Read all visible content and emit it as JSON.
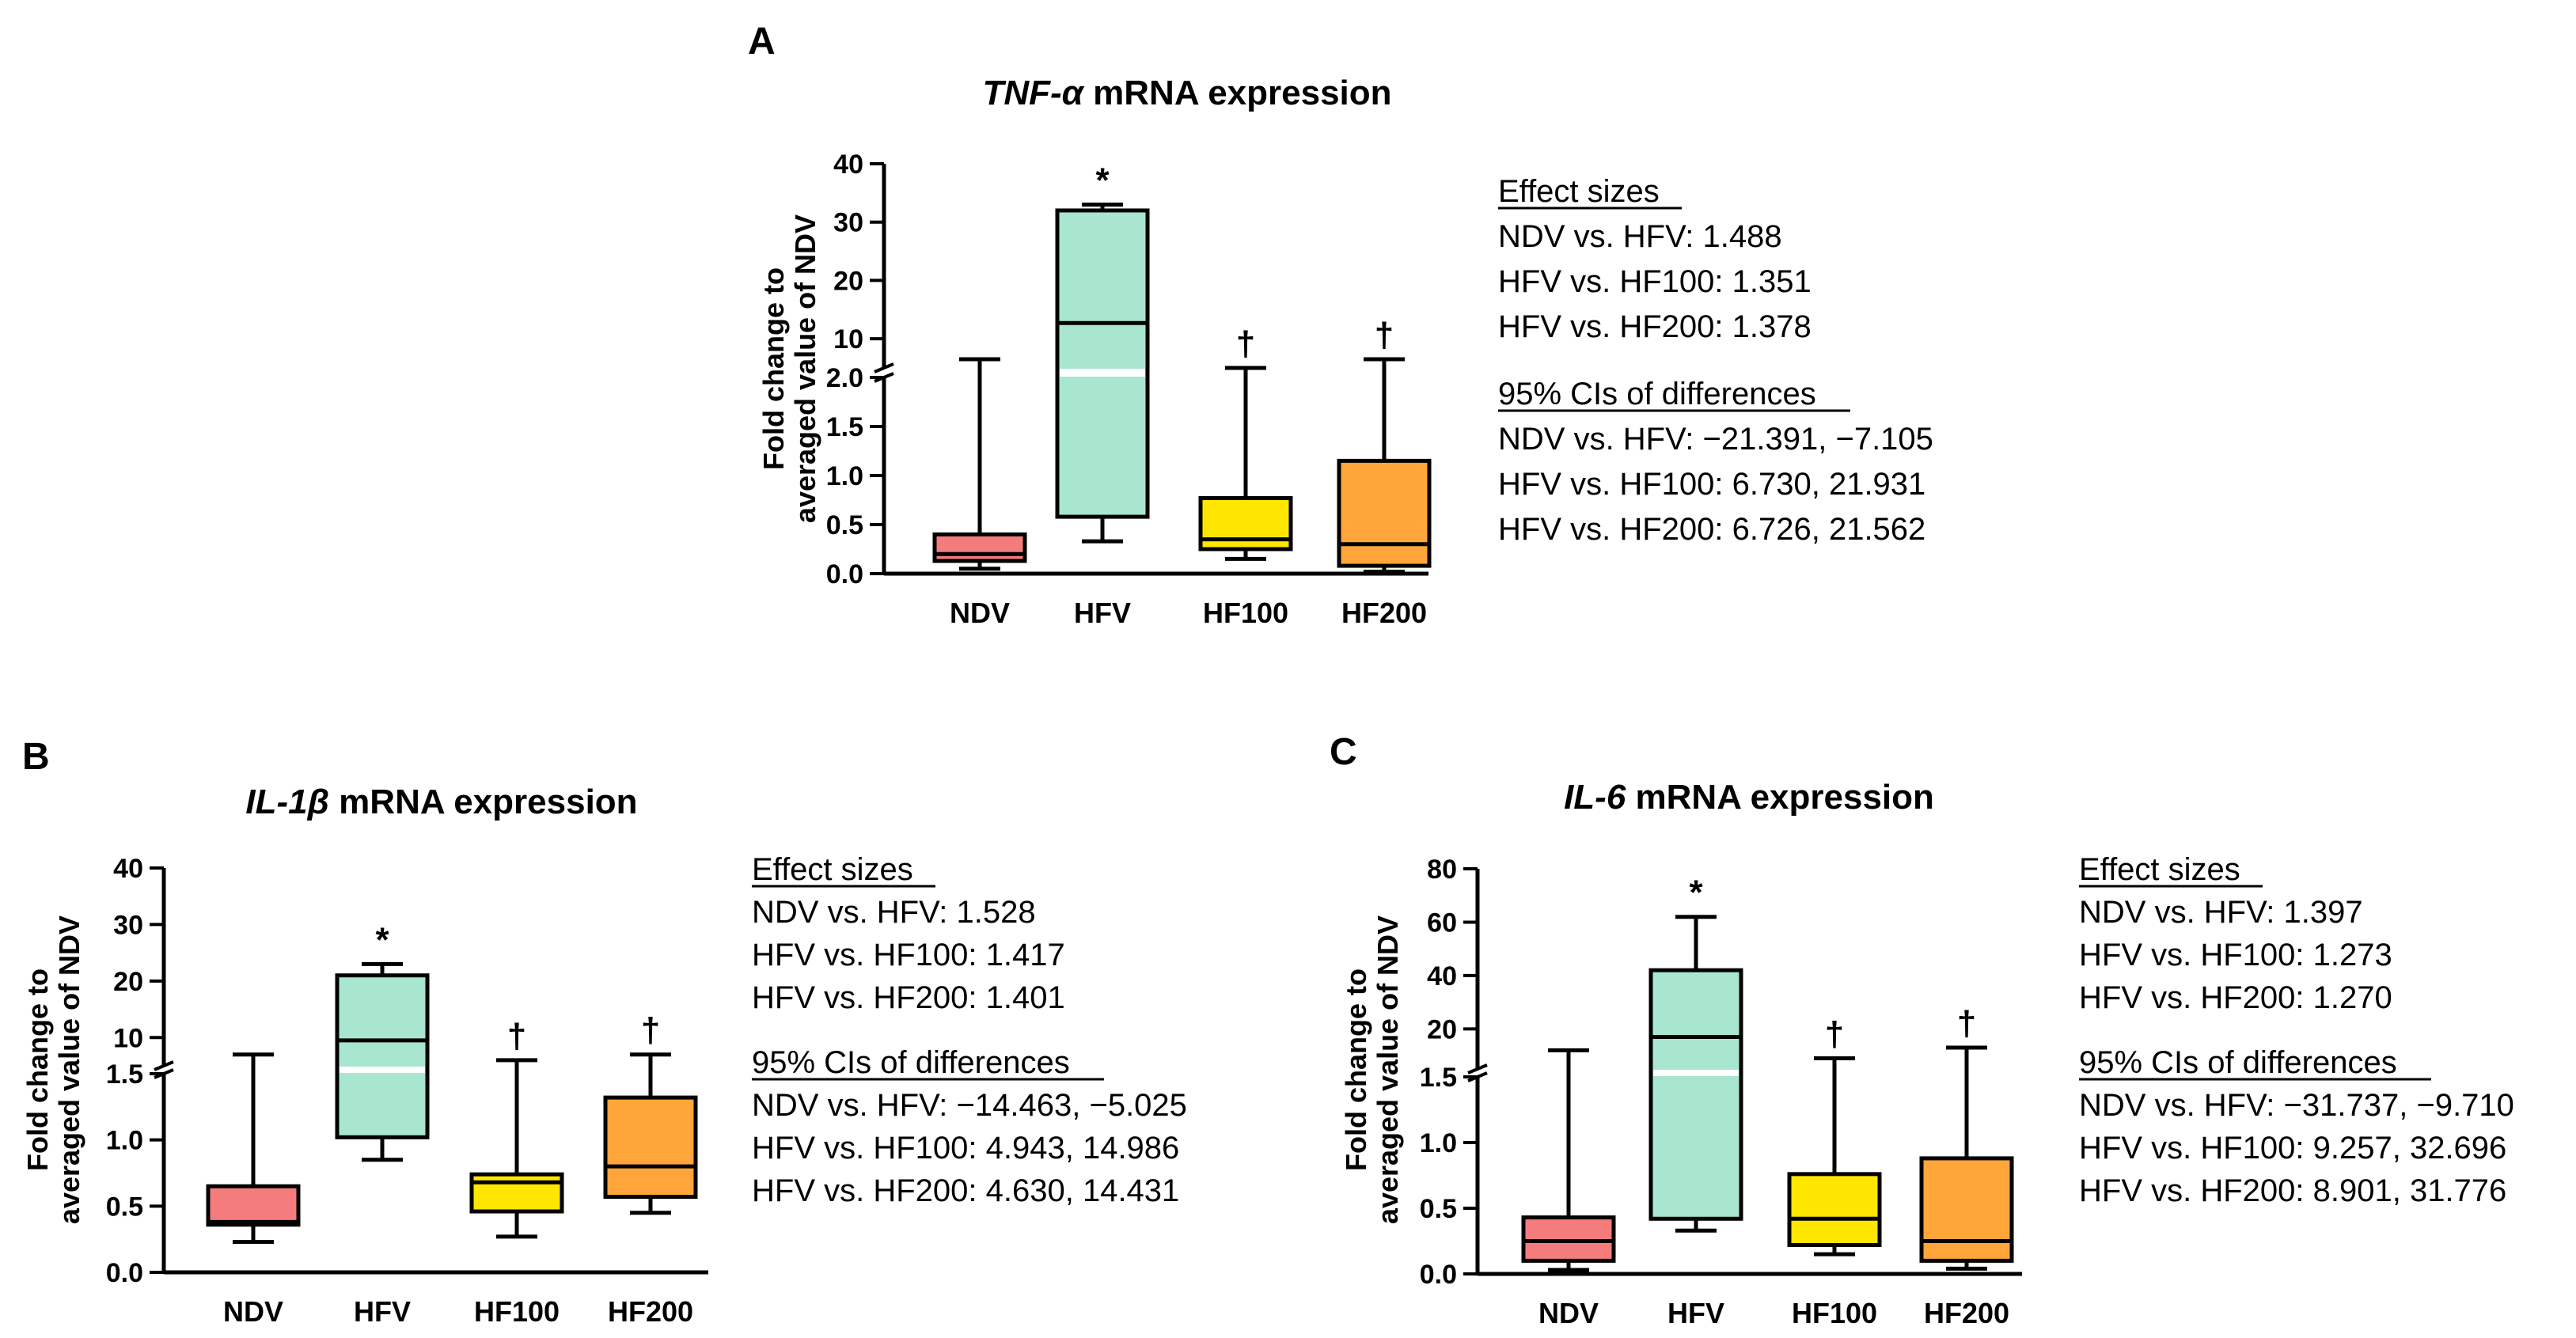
{
  "panels": [
    {
      "letter": "A",
      "title_gene": "TNF-α",
      "title_rest": " mRNA expression",
      "ylabel_lines": [
        "Fold change to",
        "averaged value of NDV"
      ],
      "categories": [
        "NDV",
        "HFV",
        "HF100",
        "HF200"
      ],
      "lower_ticks": [
        "0.0",
        "0.5",
        "1.0",
        "1.5",
        "2.0"
      ],
      "upper_ticks": [
        "10",
        "20",
        "30",
        "40"
      ],
      "significance": [
        "",
        "*",
        "†",
        "†"
      ],
      "effect_title": "Effect sizes",
      "effect_lines": [
        "NDV vs. HFV: 1.488",
        "HFV vs. HF100: 1.351",
        "HFV vs. HF200: 1.378"
      ],
      "ci_title": "95% CIs of differences",
      "ci_lines": [
        "NDV vs. HFV: −21.391, −7.105",
        "HFV vs. HF100: 6.730, 21.931",
        "HFV vs. HF200: 6.726, 21.562"
      ]
    },
    {
      "letter": "B",
      "title_gene": "IL-1β",
      "title_rest": " mRNA expression",
      "ylabel_lines": [
        "Fold change to",
        "averaged value of NDV"
      ],
      "categories": [
        "NDV",
        "HFV",
        "HF100",
        "HF200"
      ],
      "lower_ticks": [
        "0.0",
        "0.5",
        "1.0",
        "1.5"
      ],
      "upper_ticks": [
        "10",
        "20",
        "30",
        "40"
      ],
      "significance": [
        "",
        "*",
        "†",
        "†"
      ],
      "effect_title": "Effect sizes",
      "effect_lines": [
        "NDV vs. HFV: 1.528",
        "HFV vs. HF100: 1.417",
        "HFV vs. HF200: 1.401"
      ],
      "ci_title": "95% CIs of differences",
      "ci_lines": [
        "NDV vs. HFV: −14.463, −5.025",
        "HFV vs. HF100: 4.943, 14.986",
        "HFV vs. HF200: 4.630, 14.431"
      ]
    },
    {
      "letter": "C",
      "title_gene": "IL-6",
      "title_rest": " mRNA expression",
      "ylabel_lines": [
        "Fold change to",
        "averaged value of NDV"
      ],
      "categories": [
        "NDV",
        "HFV",
        "HF100",
        "HF200"
      ],
      "lower_ticks": [
        "0.0",
        "0.5",
        "1.0",
        "1.5"
      ],
      "upper_ticks": [
        "20",
        "40",
        "60",
        "80"
      ],
      "significance": [
        "",
        "*",
        "†",
        "†"
      ],
      "effect_title": "Effect sizes",
      "effect_lines": [
        "NDV vs. HFV: 1.397",
        "HFV vs. HF100: 1.273",
        "HFV vs. HF200: 1.270"
      ],
      "ci_title": "95% CIs of differences",
      "ci_lines": [
        "NDV vs. HFV: −31.737, −9.710",
        "HFV vs. HF100: 9.257, 32.696",
        "HFV vs. HF200: 8.901, 31.776"
      ]
    }
  ],
  "colors": {
    "NDV": "#f47c7c",
    "HFV": "#a8e6cf",
    "HF100": "#ffe600",
    "HF200": "#ffa53a"
  },
  "chart_data": [
    {
      "type": "box",
      "title": "TNF-α mRNA expression",
      "ylabel": "Fold change to averaged value of NDV",
      "axis": "broken",
      "lower_segment": [
        0,
        2.0
      ],
      "upper_segment": [
        5,
        40
      ],
      "categories": [
        "NDV",
        "HFV",
        "HF100",
        "HF200"
      ],
      "boxes": [
        {
          "name": "NDV",
          "min": 0.05,
          "q1": 0.13,
          "median": 0.2,
          "q3": 0.4,
          "max": 6.5
        },
        {
          "name": "HFV",
          "min": 0.33,
          "q1": 0.58,
          "median": 12.7,
          "q3": 32.0,
          "max": 33.0
        },
        {
          "name": "HF100",
          "min": 0.15,
          "q1": 0.25,
          "median": 0.35,
          "q3": 0.77,
          "max": 4.5
        },
        {
          "name": "HF200",
          "min": 0.02,
          "q1": 0.08,
          "median": 0.3,
          "q3": 1.15,
          "max": 6.5
        }
      ]
    },
    {
      "type": "box",
      "title": "IL-1β mRNA expression",
      "ylabel": "Fold change to averaged value of NDV",
      "axis": "broken",
      "lower_segment": [
        0,
        1.5
      ],
      "upper_segment": [
        5,
        40
      ],
      "categories": [
        "NDV",
        "HFV",
        "HF100",
        "HF200"
      ],
      "boxes": [
        {
          "name": "NDV",
          "min": 0.23,
          "q1": 0.36,
          "median": 0.38,
          "q3": 0.65,
          "max": 7.0
        },
        {
          "name": "HFV",
          "min": 0.85,
          "q1": 1.02,
          "median": 9.5,
          "q3": 21.0,
          "max": 23.0
        },
        {
          "name": "HF100",
          "min": 0.27,
          "q1": 0.46,
          "median": 0.68,
          "q3": 0.74,
          "max": 6.0
        },
        {
          "name": "HF200",
          "min": 0.45,
          "q1": 0.57,
          "median": 0.8,
          "q3": 1.32,
          "max": 7.0
        }
      ]
    },
    {
      "type": "box",
      "title": "IL-6 mRNA expression",
      "ylabel": "Fold change to averaged value of NDV",
      "axis": "broken",
      "lower_segment": [
        0,
        1.5
      ],
      "upper_segment": [
        5,
        80
      ],
      "categories": [
        "NDV",
        "HFV",
        "HF100",
        "HF200"
      ],
      "boxes": [
        {
          "name": "NDV",
          "min": 0.03,
          "q1": 0.1,
          "median": 0.25,
          "q3": 0.43,
          "max": 12.0
        },
        {
          "name": "HFV",
          "min": 0.33,
          "q1": 0.42,
          "median": 17.0,
          "q3": 42.0,
          "max": 62.0
        },
        {
          "name": "HF100",
          "min": 0.15,
          "q1": 0.22,
          "median": 0.42,
          "q3": 0.76,
          "max": 9.0
        },
        {
          "name": "HF200",
          "min": 0.04,
          "q1": 0.1,
          "median": 0.25,
          "q3": 0.88,
          "max": 13.0
        }
      ]
    }
  ]
}
